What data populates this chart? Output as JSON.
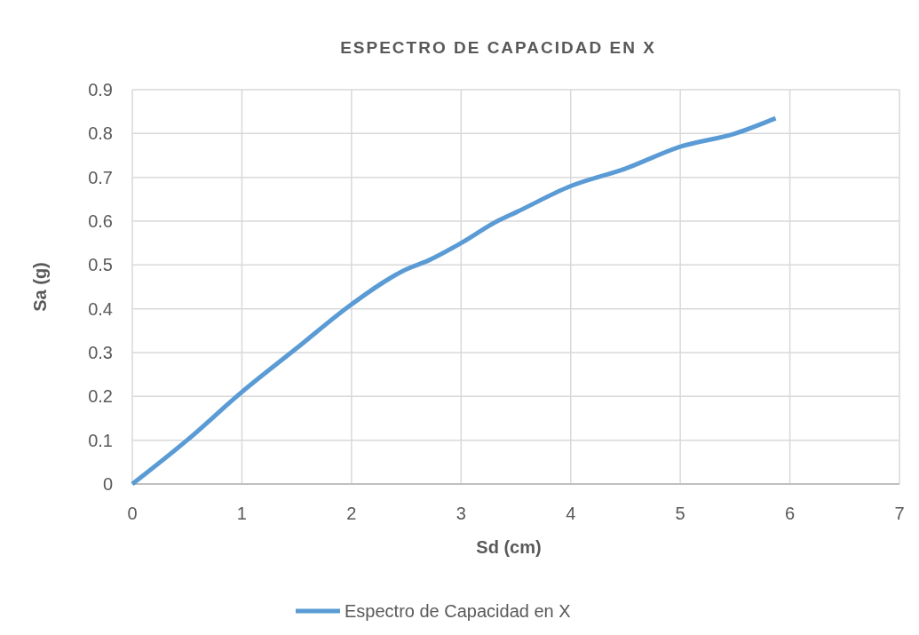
{
  "chart_data": {
    "type": "line",
    "title": "ESPECTRO DE CAPACIDAD EN X",
    "xlabel": "Sd (cm)",
    "ylabel": "Sa (g)",
    "x": [
      0,
      0.5,
      1,
      1.5,
      2,
      2.5,
      2.7,
      3,
      3.33,
      3.5,
      4,
      4.5,
      5,
      5.5,
      5.87
    ],
    "series": [
      {
        "name": "Espectro de Capacidad en X",
        "color": "#5b9bd5",
        "values": [
          0,
          0.1,
          0.21,
          0.31,
          0.41,
          0.49,
          0.51,
          0.55,
          0.6,
          0.62,
          0.68,
          0.72,
          0.77,
          0.8,
          0.835
        ]
      }
    ],
    "xlim": [
      0,
      7
    ],
    "xticks": [
      0,
      1,
      2,
      3,
      4,
      5,
      6,
      7
    ],
    "ylim": [
      0,
      0.9
    ],
    "yticks": [
      0,
      0.1,
      0.2,
      0.3,
      0.4,
      0.5,
      0.6,
      0.7,
      0.8,
      0.9
    ],
    "grid": true,
    "legend": "bottom",
    "marker": "none",
    "line_style": "solid"
  }
}
